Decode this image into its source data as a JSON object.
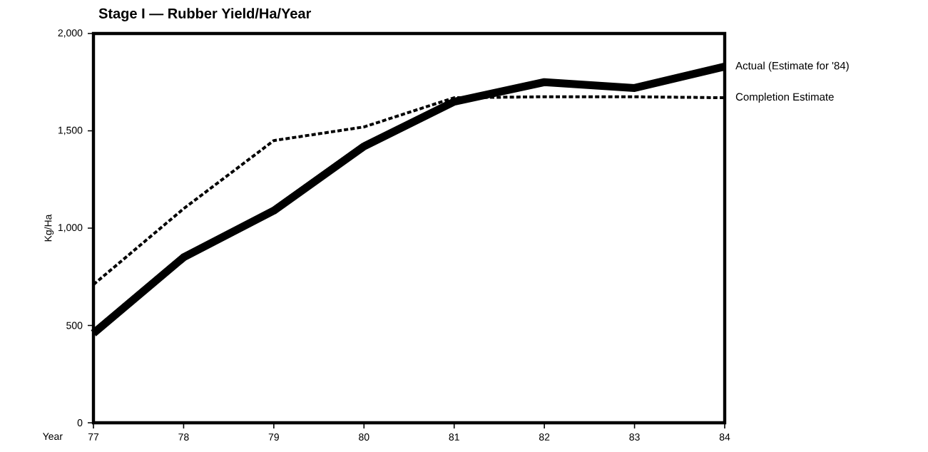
{
  "chart_data": {
    "type": "line",
    "title": "Stage I — Rubber Yield/Ha/Year",
    "xlabel": "Year",
    "ylabel": "Kg/Ha",
    "x": [
      77,
      78,
      79,
      80,
      81,
      82,
      83,
      84
    ],
    "series": [
      {
        "name": "Actual (Estimate for '84)",
        "color": "#000000",
        "line_style": "solid",
        "values": [
          460,
          850,
          1090,
          1420,
          1650,
          1750,
          1720,
          1830
        ]
      },
      {
        "name": "Completion Estimate",
        "color": "#000000",
        "line_style": "dashed",
        "values": [
          710,
          1100,
          1450,
          1520,
          1670,
          1675,
          1675,
          1670
        ]
      }
    ],
    "xlim": [
      77,
      84
    ],
    "ylim": [
      0,
      2000
    ],
    "xticks": [
      77,
      78,
      79,
      80,
      81,
      82,
      83,
      84
    ],
    "yticks": [
      0,
      500,
      {
        "value": 1000,
        "label": "1,000"
      },
      {
        "value": 1500,
        "label": "1,500"
      },
      {
        "value": 2000,
        "label": "2,000"
      }
    ],
    "grid": false,
    "legend": false,
    "marker": "none"
  }
}
